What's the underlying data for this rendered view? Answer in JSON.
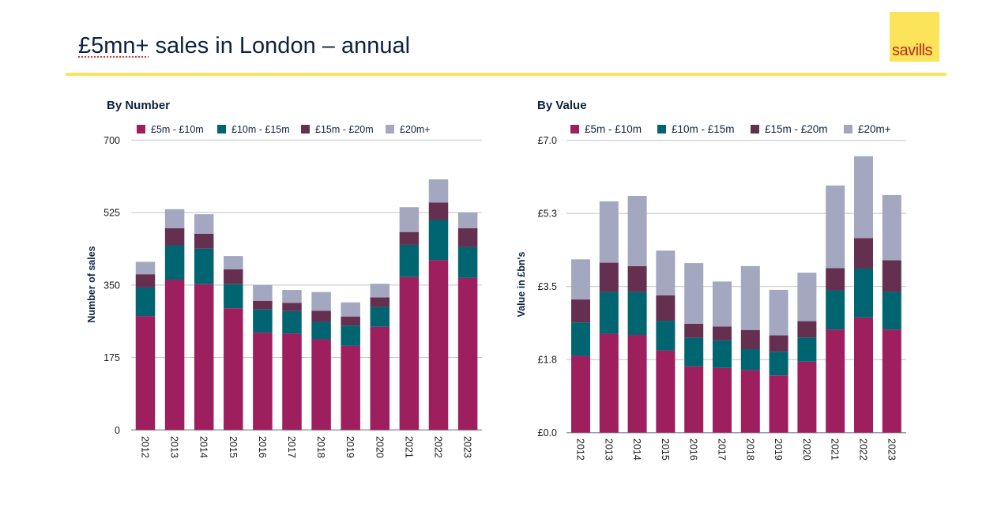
{
  "page": {
    "title_prefix": "£5mn+",
    "title_rest": " sales in London – annual",
    "logo_text": "savills",
    "colors": {
      "brand_yellow": "#f9e35a",
      "brand_red": "#c0251a",
      "title_navy": "#0d2240"
    }
  },
  "chart_data": [
    {
      "type": "bar",
      "stacked": true,
      "title": "By Number",
      "xlabel": "",
      "ylabel": "Number of sales",
      "ylim": [
        0,
        700
      ],
      "yticks": [
        0,
        175,
        350,
        525,
        700
      ],
      "ytick_labels": [
        "0",
        "175",
        "350",
        "525",
        "700"
      ],
      "grid": true,
      "legend_position": "top",
      "categories": [
        "2012",
        "2013",
        "2014",
        "2015",
        "2016",
        "2017",
        "2018",
        "2019",
        "2020",
        "2021",
        "2022",
        "2023"
      ],
      "series": [
        {
          "name": "£5m - £10m",
          "color": "#9e1f5e",
          "values": [
            275,
            363,
            352,
            294,
            235,
            233,
            219,
            203,
            249,
            369,
            410,
            367
          ]
        },
        {
          "name": "£10m - £15m",
          "color": "#006570",
          "values": [
            69,
            83,
            86,
            58,
            56,
            54,
            42,
            49,
            48,
            78,
            97,
            75
          ]
        },
        {
          "name": "£15m - £20m",
          "color": "#653050",
          "values": [
            32,
            41,
            36,
            36,
            21,
            20,
            27,
            22,
            23,
            31,
            42,
            45
          ]
        },
        {
          "name": "£20m+",
          "color": "#a3a7bf",
          "values": [
            30,
            46,
            47,
            32,
            38,
            31,
            45,
            34,
            33,
            60,
            56,
            38
          ]
        }
      ]
    },
    {
      "type": "bar",
      "stacked": true,
      "title": "By Value",
      "xlabel": "",
      "ylabel": "Value in £bn's",
      "ylim": [
        0,
        7.0
      ],
      "yticks": [
        0,
        1.75,
        3.5,
        5.25,
        7.0
      ],
      "ytick_labels": [
        "£0.0",
        "£1.8",
        "£3.5",
        "£5.3",
        "£7.0"
      ],
      "grid": true,
      "legend_position": "top",
      "categories": [
        "2012",
        "2013",
        "2014",
        "2015",
        "2016",
        "2017",
        "2018",
        "2019",
        "2020",
        "2021",
        "2022",
        "2023"
      ],
      "series": [
        {
          "name": "£5m - £10m",
          "color": "#9e1f5e",
          "values": [
            1.84,
            2.37,
            2.34,
            1.97,
            1.59,
            1.55,
            1.5,
            1.37,
            1.7,
            2.47,
            2.76,
            2.47
          ]
        },
        {
          "name": "£10m - £15m",
          "color": "#006570",
          "values": [
            0.8,
            1.0,
            1.03,
            0.71,
            0.68,
            0.66,
            0.5,
            0.57,
            0.58,
            0.94,
            1.17,
            0.9
          ]
        },
        {
          "name": "£15m - £20m",
          "color": "#653050",
          "values": [
            0.55,
            0.7,
            0.62,
            0.61,
            0.34,
            0.33,
            0.46,
            0.39,
            0.39,
            0.53,
            0.73,
            0.76
          ]
        },
        {
          "name": "£20m+",
          "color": "#a3a7bf",
          "values": [
            0.96,
            1.47,
            1.68,
            1.07,
            1.45,
            1.08,
            1.53,
            1.09,
            1.16,
            1.98,
            1.96,
            1.56
          ]
        }
      ]
    }
  ]
}
